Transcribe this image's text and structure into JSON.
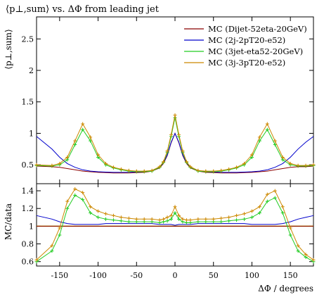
{
  "chart_data": {
    "type": "line",
    "title": "⟨p⊥,sum⟩ vs. ΔΦ from leading jet",
    "xlabel": "ΔΦ / degrees",
    "ylabel_main": "⟨p⊥,sum⟩",
    "ylabel_ratio": "MC/data",
    "xlim": [
      -180,
      180
    ],
    "ylim_main": [
      0.2,
      2.85
    ],
    "ylim_ratio": [
      0.55,
      1.48
    ],
    "xticks": [
      -150,
      -100,
      -50,
      0,
      50,
      100,
      150
    ],
    "yticks_main": [
      0.5,
      1,
      1.5,
      2,
      2.5
    ],
    "yticks_ratio": [
      0.6,
      0.8,
      1,
      1.2,
      1.4
    ],
    "xtick_labels": [
      "-150",
      "-100",
      "-50",
      "0",
      "50",
      "100",
      "150"
    ],
    "ytick_labels_main": [
      "0.5",
      "1",
      "1.5",
      "2",
      "2.5"
    ],
    "ytick_labels_ratio": [
      "0.6",
      "0.8",
      "1",
      "1.2",
      "1.4"
    ],
    "legend_position": "top-right",
    "x": [
      -180,
      -160,
      -150,
      -140,
      -130,
      -120,
      -110,
      -100,
      -90,
      -80,
      -70,
      -60,
      -50,
      -40,
      -30,
      -20,
      -15,
      -10,
      -5,
      0,
      5,
      10,
      15,
      20,
      30,
      40,
      50,
      60,
      70,
      80,
      90,
      100,
      110,
      120,
      130,
      140,
      150,
      160,
      170,
      180
    ],
    "series": [
      {
        "name": "MC (Dijet-52eta-20GeV)",
        "color": "#8b0000",
        "style": "line",
        "values": [
          0.48,
          0.47,
          0.46,
          0.44,
          0.42,
          0.4,
          0.39,
          0.38,
          0.375,
          0.37,
          0.37,
          0.37,
          0.375,
          0.38,
          0.4,
          0.45,
          0.52,
          0.65,
          0.85,
          1.0,
          0.85,
          0.65,
          0.52,
          0.45,
          0.4,
          0.38,
          0.375,
          0.37,
          0.37,
          0.37,
          0.375,
          0.38,
          0.39,
          0.4,
          0.42,
          0.44,
          0.46,
          0.47,
          0.47,
          0.48
        ]
      },
      {
        "name": "MC (2j-2pT20-e52)",
        "color": "#0000cc",
        "style": "line",
        "values": [
          0.95,
          0.75,
          0.62,
          0.52,
          0.46,
          0.42,
          0.4,
          0.39,
          0.385,
          0.38,
          0.38,
          0.38,
          0.385,
          0.39,
          0.41,
          0.46,
          0.53,
          0.66,
          0.86,
          1.0,
          0.86,
          0.66,
          0.53,
          0.46,
          0.41,
          0.39,
          0.385,
          0.38,
          0.38,
          0.38,
          0.385,
          0.39,
          0.4,
          0.42,
          0.46,
          0.52,
          0.62,
          0.75,
          0.86,
          0.95
        ]
      },
      {
        "name": "MC (3jet-eta52-20GeV)",
        "color": "#22cc22",
        "style": "line",
        "values": [
          0.49,
          0.48,
          0.5,
          0.58,
          0.82,
          1.06,
          0.88,
          0.62,
          0.5,
          0.45,
          0.42,
          0.4,
          0.39,
          0.39,
          0.4,
          0.46,
          0.54,
          0.7,
          0.95,
          1.25,
          0.95,
          0.7,
          0.54,
          0.46,
          0.4,
          0.39,
          0.39,
          0.4,
          0.42,
          0.45,
          0.5,
          0.62,
          0.88,
          1.06,
          0.82,
          0.58,
          0.5,
          0.48,
          0.48,
          0.49
        ]
      },
      {
        "name": "MC (3j-3pT20-e52)",
        "color": "#cc8800",
        "style": "line",
        "values": [
          0.5,
          0.49,
          0.52,
          0.62,
          0.88,
          1.15,
          0.94,
          0.66,
          0.52,
          0.46,
          0.43,
          0.41,
          0.4,
          0.4,
          0.41,
          0.47,
          0.55,
          0.72,
          0.98,
          1.29,
          0.98,
          0.72,
          0.55,
          0.47,
          0.41,
          0.4,
          0.4,
          0.41,
          0.43,
          0.46,
          0.52,
          0.66,
          0.94,
          1.15,
          0.88,
          0.62,
          0.52,
          0.49,
          0.49,
          0.5
        ]
      }
    ],
    "ratio_series": [
      {
        "name": "MC (Dijet-52eta-20GeV)",
        "color": "#8b0000",
        "values": [
          1.0,
          1.0,
          1.0,
          1.0,
          1.0,
          1.0,
          1.0,
          1.0,
          1.0,
          1.0,
          1.0,
          1.0,
          1.0,
          1.0,
          1.0,
          1.0,
          1.0,
          1.0,
          1.0,
          1.0,
          1.0,
          1.0,
          1.0,
          1.0,
          1.0,
          1.0,
          1.0,
          1.0,
          1.0,
          1.0,
          1.0,
          1.0,
          1.0,
          1.0,
          1.0,
          1.0,
          1.0,
          1.0,
          1.0,
          1.0
        ]
      },
      {
        "name": "MC (2j-2pT20-e52)",
        "color": "#0000cc",
        "values": [
          1.12,
          1.08,
          1.05,
          1.03,
          1.02,
          1.02,
          1.02,
          1.02,
          1.03,
          1.03,
          1.03,
          1.03,
          1.03,
          1.03,
          1.03,
          1.02,
          1.02,
          1.02,
          1.02,
          1.01,
          1.02,
          1.02,
          1.02,
          1.02,
          1.03,
          1.03,
          1.03,
          1.03,
          1.03,
          1.03,
          1.03,
          1.02,
          1.02,
          1.02,
          1.02,
          1.03,
          1.05,
          1.08,
          1.1,
          1.12
        ]
      },
      {
        "name": "MC (3jet-eta52-20GeV)",
        "color": "#22cc22",
        "values": [
          0.6,
          0.72,
          0.9,
          1.2,
          1.35,
          1.3,
          1.15,
          1.1,
          1.08,
          1.07,
          1.06,
          1.05,
          1.05,
          1.05,
          1.05,
          1.04,
          1.05,
          1.06,
          1.08,
          1.15,
          1.08,
          1.05,
          1.04,
          1.04,
          1.05,
          1.05,
          1.05,
          1.05,
          1.06,
          1.07,
          1.08,
          1.1,
          1.15,
          1.28,
          1.32,
          1.15,
          0.9,
          0.72,
          0.65,
          0.6
        ]
      },
      {
        "name": "MC (3j-3pT20-e52)",
        "color": "#cc8800",
        "values": [
          0.62,
          0.78,
          0.98,
          1.28,
          1.42,
          1.38,
          1.22,
          1.17,
          1.14,
          1.12,
          1.1,
          1.09,
          1.08,
          1.08,
          1.08,
          1.07,
          1.08,
          1.1,
          1.12,
          1.22,
          1.12,
          1.08,
          1.07,
          1.07,
          1.08,
          1.08,
          1.08,
          1.09,
          1.1,
          1.12,
          1.14,
          1.17,
          1.22,
          1.36,
          1.4,
          1.22,
          0.98,
          0.78,
          0.68,
          0.62
        ]
      }
    ]
  }
}
